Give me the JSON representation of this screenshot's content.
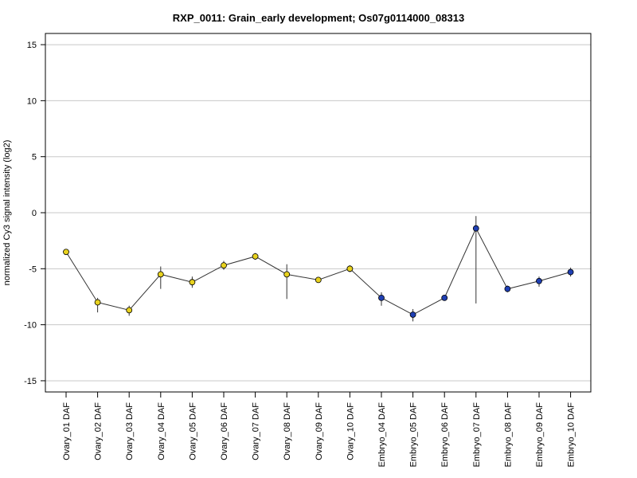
{
  "chart_data": {
    "type": "line",
    "title": "RXP_0011: Grain_early development; Os07g0114000_08313",
    "xlabel": "",
    "ylabel": "normalized Cy3 signal intensity (log2)",
    "ylim": [
      -16,
      16
    ],
    "yticks": [
      15,
      10,
      5,
      0,
      -5,
      -10,
      -15
    ],
    "grid": "horizontal",
    "categories": [
      "Ovary_01 DAF",
      "Ovary_02 DAF",
      "Ovary_03 DAF",
      "Ovary_04 DAF",
      "Ovary_05 DAF",
      "Ovary_06 DAF",
      "Ovary_07 DAF",
      "Ovary_08 DAF",
      "Ovary_09 DAF",
      "Ovary_10 DAF",
      "Embryo_04 DAF",
      "Embryo_05 DAF",
      "Embryo_06 DAF",
      "Embryo_07 DAF",
      "Embryo_08 DAF",
      "Embryo_09 DAF",
      "Embryo_10 DAF"
    ],
    "series": [
      {
        "values": [
          -3.5,
          -8.0,
          -8.7,
          -5.5,
          -6.2,
          -4.7,
          -3.9,
          -5.5,
          -6.0,
          -5.0,
          -7.6,
          -9.1,
          -7.6,
          -1.4,
          -6.8,
          -6.1,
          -5.3
        ],
        "error_low": [
          -3.5,
          -8.9,
          -9.2,
          -6.8,
          -6.7,
          -5.1,
          -4.2,
          -7.7,
          -6.2,
          -5.3,
          -8.3,
          -9.7,
          -7.8,
          -8.1,
          -7.1,
          -6.6,
          -5.7
        ],
        "error_high": [
          -3.4,
          -7.6,
          -8.3,
          -4.8,
          -5.7,
          -4.3,
          -3.6,
          -4.6,
          -5.8,
          -4.7,
          -7.1,
          -8.6,
          -7.4,
          -0.3,
          -6.5,
          -5.7,
          -4.9
        ],
        "point_colors": [
          "#e8d21f",
          "#e8d21f",
          "#e8d21f",
          "#e8d21f",
          "#e8d21f",
          "#e8d21f",
          "#e8d21f",
          "#e8d21f",
          "#e8d21f",
          "#e8d21f",
          "#1f3fb3",
          "#1f3fb3",
          "#1f3fb3",
          "#1f3fb3",
          "#1f3fb3",
          "#1f3fb3",
          "#1f3fb3"
        ]
      }
    ]
  }
}
